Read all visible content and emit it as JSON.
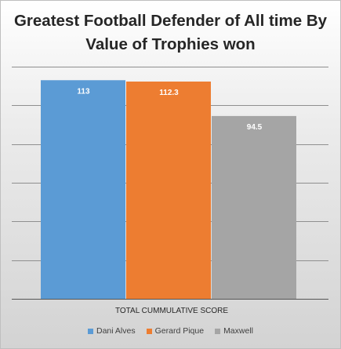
{
  "chart_data": {
    "type": "bar",
    "title": "Greatest Football Defender of All time By Value of Trophies won",
    "xlabel": "TOTAL CUMMULATIVE SCORE",
    "ylabel": "",
    "category": "TOTAL CUMMULATIVE SCORE",
    "ylim": [
      0,
      120
    ],
    "grid": true,
    "legend_position": "bottom",
    "series": [
      {
        "name": "Dani Alves",
        "value": 113,
        "label": "113",
        "color": "#5b9bd5"
      },
      {
        "name": "Gerard Pique",
        "value": 112.3,
        "label": "112.3",
        "color": "#ed7d31"
      },
      {
        "name": "Maxwell",
        "value": 94.5,
        "label": "94.5",
        "color": "#a5a5a5"
      }
    ]
  }
}
